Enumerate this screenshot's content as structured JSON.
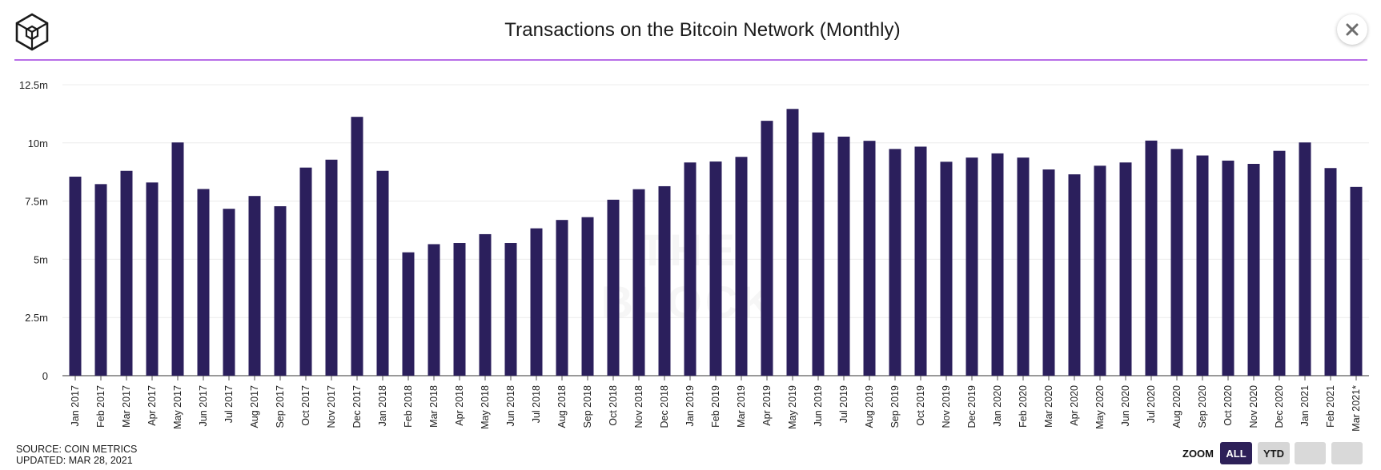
{
  "header": {
    "title": "Transactions on the Bitcoin Network (Monthly)"
  },
  "footer": {
    "source": "SOURCE: COIN METRICS",
    "updated": "UPDATED: MAR 28, 2021"
  },
  "watermark": "THE BLOCK",
  "zoom": {
    "label": "ZOOM",
    "options": [
      "ALL",
      "YTD",
      "",
      ""
    ],
    "selected": "ALL"
  },
  "colors": {
    "bar": "#2b1f5c",
    "divider": "#b86ee8",
    "accent": "#2d2058"
  },
  "chart_data": {
    "type": "bar",
    "title": "Transactions on the Bitcoin Network (Monthly)",
    "ylim": [
      0,
      12500000
    ],
    "yticks": [
      0,
      2500000,
      5000000,
      7500000,
      10000000,
      12500000
    ],
    "ytick_labels": [
      "0",
      "2.5m",
      "5m",
      "7.5m",
      "10m",
      "12.5m"
    ],
    "grid": true,
    "categories": [
      "Jan 2017",
      "Feb 2017",
      "Mar 2017",
      "Apr 2017",
      "May 2017",
      "Jun 2017",
      "Jul 2017",
      "Aug 2017",
      "Sep 2017",
      "Oct 2017",
      "Nov 2017",
      "Dec 2017",
      "Jan 2018",
      "Feb 2018",
      "Mar 2018",
      "Apr 2018",
      "May 2018",
      "Jun 2018",
      "Jul 2018",
      "Aug 2018",
      "Sep 2018",
      "Oct 2018",
      "Nov 2018",
      "Dec 2018",
      "Jan 2019",
      "Feb 2019",
      "Mar 2019",
      "Apr 2019",
      "May 2019",
      "Jun 2019",
      "Jul 2019",
      "Aug 2019",
      "Sep 2019",
      "Oct 2019",
      "Nov 2019",
      "Dec 2019",
      "Jan 2020",
      "Feb 2020",
      "Mar 2020",
      "Apr 2020",
      "May 2020",
      "Jun 2020",
      "Jul 2020",
      "Aug 2020",
      "Sep 2020",
      "Oct 2020",
      "Nov 2020",
      "Dec 2020",
      "Jan 2021",
      "Feb 2021",
      "Mar 2021*"
    ],
    "values": [
      8550000,
      8230000,
      8800000,
      8300000,
      10020000,
      8020000,
      7170000,
      7720000,
      7280000,
      8940000,
      9280000,
      11120000,
      8800000,
      5300000,
      5650000,
      5700000,
      6080000,
      5700000,
      6330000,
      6690000,
      6810000,
      7560000,
      8010000,
      8140000,
      9160000,
      9200000,
      9400000,
      10950000,
      11460000,
      10450000,
      10270000,
      10090000,
      9740000,
      9840000,
      9190000,
      9370000,
      9550000,
      9370000,
      8860000,
      8650000,
      9020000,
      9160000,
      10100000,
      9740000,
      9460000,
      9240000,
      9100000,
      9660000,
      10020000,
      8920000,
      8110000
    ]
  }
}
